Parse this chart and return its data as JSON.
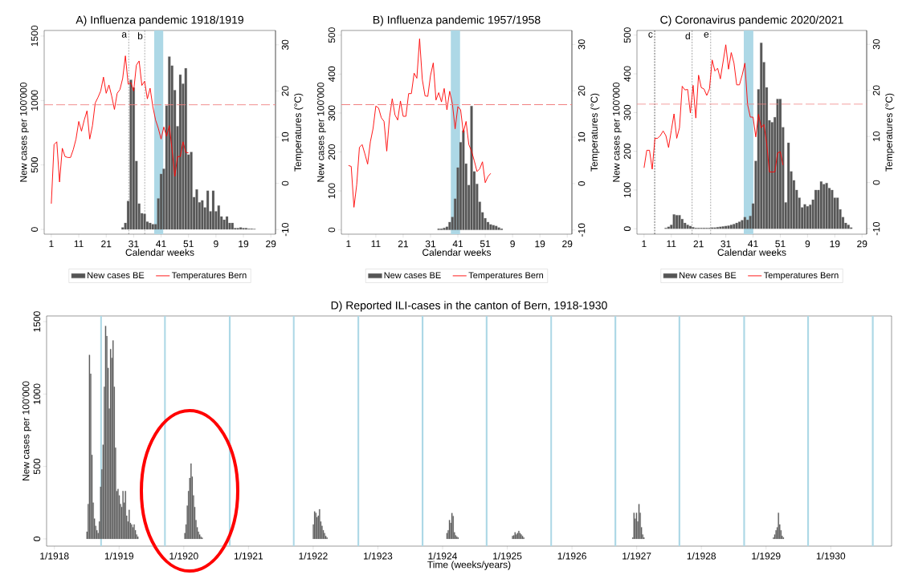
{
  "chart_data": [
    {
      "type": "bar",
      "title": "A) Influenza pandemic 1918/1919",
      "xlabel": "Calendar weeks",
      "ylabel": "New cases per 100'000",
      "y2label": "Temperatures (°C)",
      "categories": [
        "1",
        null,
        null,
        null,
        null,
        null,
        null,
        null,
        null,
        null,
        "11",
        null,
        null,
        null,
        null,
        null,
        null,
        null,
        null,
        null,
        "21",
        null,
        null,
        null,
        null,
        null,
        null,
        null,
        null,
        null,
        "31",
        null,
        null,
        null,
        null,
        null,
        null,
        null,
        null,
        null,
        "41",
        null,
        null,
        null,
        null,
        null,
        null,
        null,
        null,
        null,
        "51",
        null,
        null,
        null,
        null,
        null,
        null,
        null,
        null,
        null,
        "9",
        null,
        null,
        null,
        null,
        null,
        null,
        null,
        null,
        null,
        "19",
        null,
        null,
        null,
        null,
        null,
        null,
        null,
        null,
        null,
        "29"
      ],
      "ylim": [
        -37,
        1543
      ],
      "y2lim": [
        -11,
        33.1
      ],
      "yticks": [
        0,
        500,
        1000,
        1500
      ],
      "y2ticks": [
        -10,
        0,
        10,
        20,
        30
      ],
      "legend": "bottom",
      "series": [
        {
          "name": "New cases BE",
          "color": "#555555",
          "values": [
            null,
            null,
            null,
            null,
            null,
            null,
            null,
            null,
            null,
            null,
            null,
            null,
            null,
            null,
            null,
            null,
            null,
            null,
            null,
            null,
            null,
            null,
            null,
            null,
            null,
            null,
            15,
            50,
            220,
            1160,
            1100,
            530,
            200,
            125,
            120,
            60,
            50,
            40,
            40,
            240,
            430,
            470,
            960,
            1340,
            1270,
            1080,
            800,
            1200,
            1130,
            1250,
            580,
            600,
            250,
            310,
            210,
            225,
            170,
            300,
            140,
            300,
            140,
            185,
            100,
            75,
            100,
            50,
            50,
            10,
            10,
            15,
            10,
            10,
            5,
            5,
            3,
            null,
            null,
            null,
            null,
            null,
            null
          ]
        },
        {
          "type": "line",
          "name": "Temperatures Bern",
          "color": "#ff0000",
          "axis": "y2",
          "values": [
            -4.4,
            8.4,
            9,
            0.3,
            7.6,
            5.8,
            5.6,
            5.6,
            7.3,
            9.6,
            13.4,
            11.3,
            13.7,
            15.7,
            9.6,
            12.5,
            17.4,
            18.6,
            20,
            23,
            19.5,
            21.3,
            18.9,
            16,
            19.5,
            20.3,
            22.7,
            27.6,
            21.5,
            21.8,
            20,
            25.6,
            26.5,
            21.2,
            22.1,
            18.3,
            20.6,
            16.6,
            13.7,
            11.9,
            9.6,
            12.2,
            10.2,
            12.5,
            7.3,
            1.5,
            5.8,
            5.8,
            9,
            6.7,
            6.6,
            null,
            null,
            null,
            null,
            null,
            null,
            null,
            null,
            null,
            null,
            null,
            null,
            null,
            null,
            null,
            null,
            null,
            null,
            null,
            null,
            null,
            null,
            null,
            null,
            null,
            null,
            null,
            null,
            null,
            null
          ]
        }
      ],
      "ref_lines": [
        {
          "axis": "y2",
          "value": 17,
          "color": "#f08080",
          "line_style": "dashed"
        }
      ],
      "annotations": [
        "a",
        "b"
      ]
    },
    {
      "type": "bar",
      "title": "B) Influenza pandemic 1957/1958",
      "xlabel": "Calendar weeks",
      "ylabel": "New cases per 100'000",
      "y2label": "Temperatures (°C)",
      "categories": [
        "1",
        null,
        null,
        null,
        null,
        null,
        null,
        null,
        null,
        null,
        "11",
        null,
        null,
        null,
        null,
        null,
        null,
        null,
        null,
        null,
        "21",
        null,
        null,
        null,
        null,
        null,
        null,
        null,
        null,
        null,
        "31",
        null,
        null,
        null,
        null,
        null,
        null,
        null,
        null,
        null,
        "41",
        null,
        null,
        null,
        null,
        null,
        null,
        null,
        null,
        null,
        "51",
        null,
        null,
        null,
        null,
        null,
        null,
        null,
        null,
        null,
        "9",
        null,
        null,
        null,
        null,
        null,
        null,
        null,
        null,
        null,
        "19",
        null,
        null,
        null,
        null,
        null,
        null,
        null,
        null,
        null,
        "29"
      ],
      "ylim": [
        -11,
        512
      ],
      "y2lim": [
        -10.9,
        33
      ],
      "yticks": [
        0,
        100,
        200,
        300,
        400,
        500
      ],
      "y2ticks": [
        -10,
        0,
        10,
        20,
        30
      ],
      "legend": "bottom",
      "series": [
        {
          "name": "New cases BE",
          "color": "#555555",
          "values": [
            null,
            null,
            null,
            null,
            null,
            null,
            null,
            null,
            null,
            null,
            null,
            null,
            null,
            null,
            null,
            null,
            null,
            null,
            null,
            null,
            null,
            null,
            null,
            null,
            null,
            null,
            null,
            null,
            null,
            null,
            null,
            null,
            null,
            3,
            3,
            5,
            8,
            20,
            33,
            80,
            160,
            225,
            255,
            170,
            115,
            318,
            150,
            118,
            72,
            45,
            30,
            20,
            14,
            12,
            10,
            6,
            3,
            null,
            null,
            null,
            null,
            null,
            null,
            null,
            null,
            null,
            null,
            null,
            null,
            null,
            null,
            null,
            null,
            null,
            null,
            null,
            null,
            null,
            null,
            null,
            null
          ]
        },
        {
          "type": "line",
          "name": "Temperatures Bern",
          "color": "#ff0000",
          "axis": "y2",
          "values": [
            3.9,
            3.7,
            -5.1,
            -0.3,
            7.8,
            8.4,
            6.4,
            4.2,
            9,
            11.9,
            16.7,
            16.3,
            14.2,
            13.4,
            7,
            14.2,
            18.3,
            14.8,
            13.7,
            17.8,
            14.5,
            14.5,
            19.4,
            19.4,
            23.8,
            22.7,
            31.2,
            22.4,
            18.9,
            18.8,
            23.3,
            26,
            18,
            19.6,
            17.6,
            20.5,
            15.9,
            19.9,
            17.2,
            11.8,
            16.6,
            15.9,
            11,
            13.4,
            8.4,
            7,
            4.9,
            2.6,
            3.2,
            4.7,
            0.2,
            1.5,
            2.2,
            null,
            null,
            null,
            null,
            null,
            null,
            null,
            null,
            null,
            null,
            null,
            null,
            null,
            null,
            null,
            null,
            null,
            null,
            null,
            null,
            null,
            null,
            null,
            null,
            null,
            null,
            null,
            null
          ]
        }
      ],
      "ref_lines": [
        {
          "axis": "y2",
          "value": 17,
          "color": "#f08080",
          "line_style": "dashed"
        }
      ]
    },
    {
      "type": "bar",
      "title": "C) Coronavirus pandemic 2020/2021",
      "xlabel": "Calendar weeks",
      "ylabel": "New cases per 100'000",
      "y2label": "Temperatures (°C)",
      "categories": [
        "1",
        null,
        null,
        null,
        null,
        null,
        null,
        null,
        null,
        null,
        "11",
        null,
        null,
        null,
        null,
        null,
        null,
        null,
        null,
        null,
        "21",
        null,
        null,
        null,
        null,
        null,
        null,
        null,
        null,
        null,
        "31",
        null,
        null,
        null,
        null,
        null,
        null,
        null,
        null,
        null,
        "41",
        null,
        null,
        null,
        null,
        null,
        null,
        null,
        null,
        null,
        "51",
        null,
        null,
        null,
        null,
        null,
        null,
        null,
        null,
        null,
        "9",
        null,
        null,
        null,
        null,
        null,
        null,
        null,
        null,
        null,
        "19",
        null,
        null,
        null,
        null,
        null,
        null,
        null,
        null,
        null,
        "29"
      ],
      "ylim": [
        -14,
        512
      ],
      "y2lim": [
        -11.2,
        33
      ],
      "yticks": [
        0,
        100,
        200,
        300,
        400,
        500
      ],
      "y2ticks": [
        -10,
        0,
        10,
        20,
        30
      ],
      "legend": "bottom",
      "series": [
        {
          "name": "New cases BE",
          "color": "#555555",
          "values": [
            null,
            null,
            null,
            null,
            null,
            null,
            null,
            null,
            2,
            5,
            10,
            37,
            35,
            35,
            25,
            15,
            10,
            7,
            4,
            2,
            2,
            2,
            2,
            2,
            2,
            3,
            3,
            4,
            5,
            6,
            7,
            8,
            10,
            12,
            15,
            18,
            22,
            30,
            23,
            33,
            65,
            175,
            360,
            480,
            430,
            365,
            280,
            275,
            288,
            335,
            335,
            262,
            68,
            222,
            148,
            125,
            100,
            80,
            55,
            63,
            58,
            62,
            75,
            100,
            100,
            122,
            115,
            118,
            105,
            100,
            80,
            80,
            50,
            30,
            15,
            10,
            3,
            null,
            null,
            null,
            null
          ]
        },
        {
          "type": "line",
          "name": "Temperatures Bern",
          "color": "#ff0000",
          "axis": "y2",
          "values": [
            3.2,
            7,
            7,
            2.9,
            9.6,
            9.6,
            10.2,
            11.2,
            10.2,
            7.6,
            11.3,
            14.9,
            9.6,
            11.9,
            20.9,
            20.1,
            20.2,
            15.1,
            21.1,
            14,
            23.3,
            20.6,
            20.3,
            18.9,
            20.3,
            26.6,
            24.2,
            24.8,
            22.5,
            26.2,
            29.9,
            24.6,
            28.2,
            25.9,
            21.2,
            21.2,
            23.3,
            25.9,
            16.9,
            14.2,
            14.2,
            9.9,
            14.8,
            11.9,
            12.6,
            8.5,
            2.3,
            2.3,
            2.3,
            6.4,
            6.7,
            3.8,
            null,
            null,
            null,
            null,
            null,
            null,
            null,
            null,
            null,
            null,
            null,
            null,
            null,
            null,
            null,
            null,
            null,
            null,
            null,
            null,
            null,
            null,
            null,
            null,
            null,
            null,
            null,
            null,
            null
          ]
        }
      ],
      "ref_lines": [
        {
          "axis": "y2",
          "value": 17,
          "color": "#f08080",
          "line_style": "dashed"
        }
      ],
      "annotations": [
        "c",
        "d",
        "e"
      ]
    },
    {
      "type": "bar",
      "title": "D) Reported ILI-cases in the canton of Bern, 1918-1930",
      "xlabel": "Time (weeks/years)",
      "ylabel": "New cases per 100'000",
      "xlim": [
        "1917-11-18",
        "1930-12-10"
      ],
      "ylim": [
        -50,
        1539
      ],
      "xticks": [
        {
          "value": "1918-01",
          "label": "1/1918"
        },
        {
          "value": "1919-01",
          "label": "1/1919"
        },
        {
          "value": "1920-01",
          "label": "1/1920"
        },
        {
          "value": "1921-01",
          "label": "1/1921"
        },
        {
          "value": "1922-01",
          "label": "1/1922"
        },
        {
          "value": "1923-01",
          "label": "1/1923"
        },
        {
          "value": "1924-01",
          "label": "1/1924"
        },
        {
          "value": "1925-01",
          "label": "1/1925"
        },
        {
          "value": "1926-01",
          "label": "1/1926"
        },
        {
          "value": "1927-01",
          "label": "1/1927"
        },
        {
          "value": "1928-01",
          "label": "1/1928"
        },
        {
          "value": "1929-01",
          "label": "1/1929"
        },
        {
          "value": "1930-01",
          "label": "1/1930"
        }
      ],
      "yticks": [
        0,
        500,
        1000,
        1500
      ],
      "series": [
        {
          "color": "#555555",
          "x": [
            "1918-07-04",
            "1918-07-11",
            "1918-07-18",
            "1918-07-25",
            "1918-08-01",
            "1918-08-08",
            "1918-08-15",
            "1918-08-22",
            "1918-08-29",
            "1918-09-05",
            "1918-09-12",
            "1918-09-19",
            "1918-09-26",
            "1918-10-03",
            "1918-10-10",
            "1918-10-17",
            "1918-10-24",
            "1918-10-31",
            "1918-11-07",
            "1918-11-14",
            "1918-11-21",
            "1918-11-28",
            "1918-12-05",
            "1918-12-12",
            "1918-12-19",
            "1918-12-26",
            "1919-01-02",
            "1919-01-09",
            "1919-01-16",
            "1919-01-23",
            "1919-01-30",
            "1919-02-06",
            "1919-02-13",
            "1919-02-20",
            "1919-02-27",
            "1919-03-06",
            "1919-03-13",
            "1919-03-20",
            "1919-03-27",
            "1919-04-03",
            "1919-04-10",
            "1919-04-17",
            "1920-01-07",
            "1920-01-14",
            "1920-01-21",
            "1920-01-28",
            "1920-02-04",
            "1920-02-11",
            "1920-02-18",
            "1920-02-25",
            "1920-03-03",
            "1920-03-10",
            "1920-03-17",
            "1920-03-24",
            "1920-03-31",
            "1920-04-07",
            "1920-04-14",
            "1922-01-02",
            "1922-01-09",
            "1922-01-16",
            "1922-01-23",
            "1922-01-30",
            "1922-02-06",
            "1922-02-13",
            "1922-02-20",
            "1922-02-27",
            "1922-03-06",
            "1922-03-13",
            "1922-03-20",
            "1924-01-26",
            "1924-02-02",
            "1924-02-09",
            "1924-02-16",
            "1924-02-23",
            "1924-03-01",
            "1924-03-08",
            "1924-03-15",
            "1924-03-22",
            "1924-03-29",
            "1925-01-31",
            "1925-02-07",
            "1925-02-14",
            "1925-02-21",
            "1925-02-28",
            "1925-03-07",
            "1925-03-14",
            "1925-03-21",
            "1925-03-28",
            "1925-04-04",
            "1926-12-10",
            "1926-12-17",
            "1926-12-24",
            "1926-12-31",
            "1927-01-07",
            "1927-01-14",
            "1927-01-21",
            "1927-01-28",
            "1927-02-04",
            "1927-02-11",
            "1929-02-12",
            "1929-02-19",
            "1929-02-26",
            "1929-03-05",
            "1929-03-12",
            "1929-03-19",
            "1929-03-26",
            "1929-04-02",
            "1929-04-09"
          ],
          "values": [
            50,
            240,
            1270,
            1140,
            580,
            250,
            140,
            90,
            60,
            40,
            120,
            360,
            480,
            650,
            1050,
            1470,
            1400,
            1180,
            900,
            1310,
            1250,
            1370,
            1050,
            630,
            330,
            345,
            300,
            240,
            220,
            330,
            250,
            330,
            160,
            120,
            200,
            110,
            100,
            80,
            100,
            60,
            30,
            15,
            40,
            100,
            230,
            330,
            420,
            520,
            430,
            300,
            220,
            130,
            80,
            50,
            30,
            15,
            8,
            100,
            190,
            180,
            150,
            160,
            205,
            120,
            90,
            60,
            40,
            20,
            10,
            40,
            60,
            130,
            110,
            178,
            158,
            45,
            25,
            15,
            10,
            20,
            25,
            45,
            30,
            40,
            55,
            40,
            30,
            20,
            10,
            10,
            180,
            140,
            180,
            120,
            240,
            180,
            80,
            30,
            10,
            10,
            30,
            60,
            80,
            180,
            100,
            60,
            20,
            10
          ]
        }
      ],
      "ref_lines": [
        {
          "axis": "x",
          "value": "1918-09-21",
          "color": "#add8e6",
          "line_style": "solid"
        },
        {
          "axis": "x",
          "value": "1919-09-17",
          "color": "#add8e6",
          "line_style": "solid"
        },
        {
          "axis": "x",
          "value": "1920-09-17",
          "color": "#add8e6",
          "line_style": "solid"
        },
        {
          "axis": "x",
          "value": "1921-09-13",
          "color": "#add8e6",
          "line_style": "solid"
        },
        {
          "axis": "x",
          "value": "1922-09-13",
          "color": "#add8e6",
          "line_style": "solid"
        },
        {
          "axis": "x",
          "value": "1923-09-10",
          "color": "#add8e6",
          "line_style": "solid"
        },
        {
          "axis": "x",
          "value": "1924-09-06",
          "color": "#add8e6",
          "line_style": "solid"
        },
        {
          "axis": "x",
          "value": "1925-09-06",
          "color": "#add8e6",
          "line_style": "solid"
        },
        {
          "axis": "x",
          "value": "1926-09-03",
          "color": "#add8e6",
          "line_style": "solid"
        },
        {
          "axis": "x",
          "value": "1927-08-30",
          "color": "#add8e6",
          "line_style": "solid"
        },
        {
          "axis": "x",
          "value": "1928-08-30",
          "color": "#add8e6",
          "line_style": "solid"
        },
        {
          "axis": "x",
          "value": "1929-08-26",
          "color": "#add8e6",
          "line_style": "solid"
        },
        {
          "axis": "x",
          "value": "1930-08-26",
          "color": "#add8e6",
          "line_style": "solid"
        }
      ]
    }
  ]
}
